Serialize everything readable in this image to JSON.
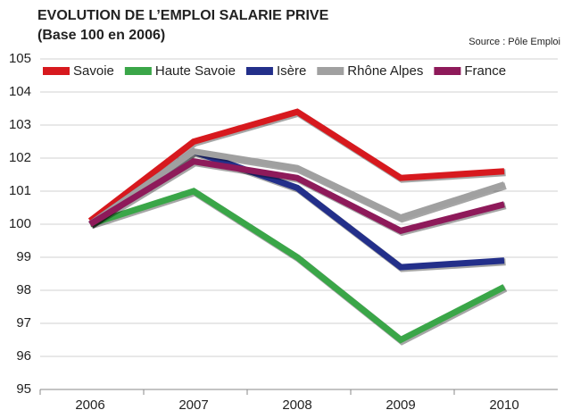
{
  "chart_data": {
    "type": "line",
    "title": "EVOLUTION DE L’EMPLOI SALARIE PRIVE",
    "subtitle": "(Base 100 en 2006)",
    "source": "Source : Pôle Emploi",
    "categories": [
      "2006",
      "2007",
      "2008",
      "2009",
      "2010"
    ],
    "series": [
      {
        "name": "Savoie",
        "color": "#d7191e",
        "values": [
          100.1,
          102.5,
          103.4,
          101.4,
          101.6
        ]
      },
      {
        "name": "Haute Savoie",
        "color": "#3aa648",
        "values": [
          100,
          101,
          99,
          96.5,
          98.1
        ]
      },
      {
        "name": "Isère",
        "color": "#232f8a",
        "values": [
          100,
          102.2,
          101.1,
          98.7,
          98.9
        ]
      },
      {
        "name": "Rhône Alpes",
        "color": "#a0a0a0",
        "values": [
          100,
          102.2,
          101.7,
          100.2,
          101.2
        ]
      },
      {
        "name": "France",
        "color": "#8e1a5a",
        "values": [
          100,
          101.9,
          101.4,
          99.8,
          100.6
        ]
      }
    ],
    "ylim": [
      95,
      105
    ],
    "yticks": [
      95,
      96,
      97,
      98,
      99,
      100,
      101,
      102,
      103,
      104,
      105
    ],
    "grid": true,
    "legend": "top"
  }
}
